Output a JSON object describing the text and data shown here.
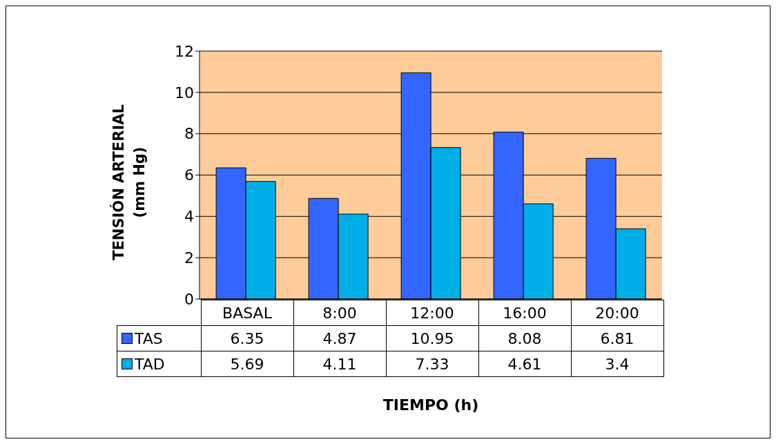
{
  "chart_data": {
    "type": "bar",
    "xlabel": "TIEMPO (h)",
    "ylabel": "TENSIÓN ARTERIAL (mm Hg)",
    "categories": [
      "BASAL",
      "8:00",
      "12:00",
      "16:00",
      "20:00"
    ],
    "series": [
      {
        "name": "TAS",
        "color": "#3366ff",
        "values": [
          6.35,
          4.87,
          10.95,
          8.08,
          6.81
        ]
      },
      {
        "name": "TAD",
        "color": "#00aee8",
        "values": [
          5.69,
          4.11,
          7.33,
          4.61,
          3.4
        ]
      }
    ],
    "ylim": [
      0,
      12
    ],
    "yticks": [
      0,
      2,
      4,
      6,
      8,
      10,
      12
    ],
    "grid": "y",
    "legend": "bottom",
    "data_labels": true
  }
}
